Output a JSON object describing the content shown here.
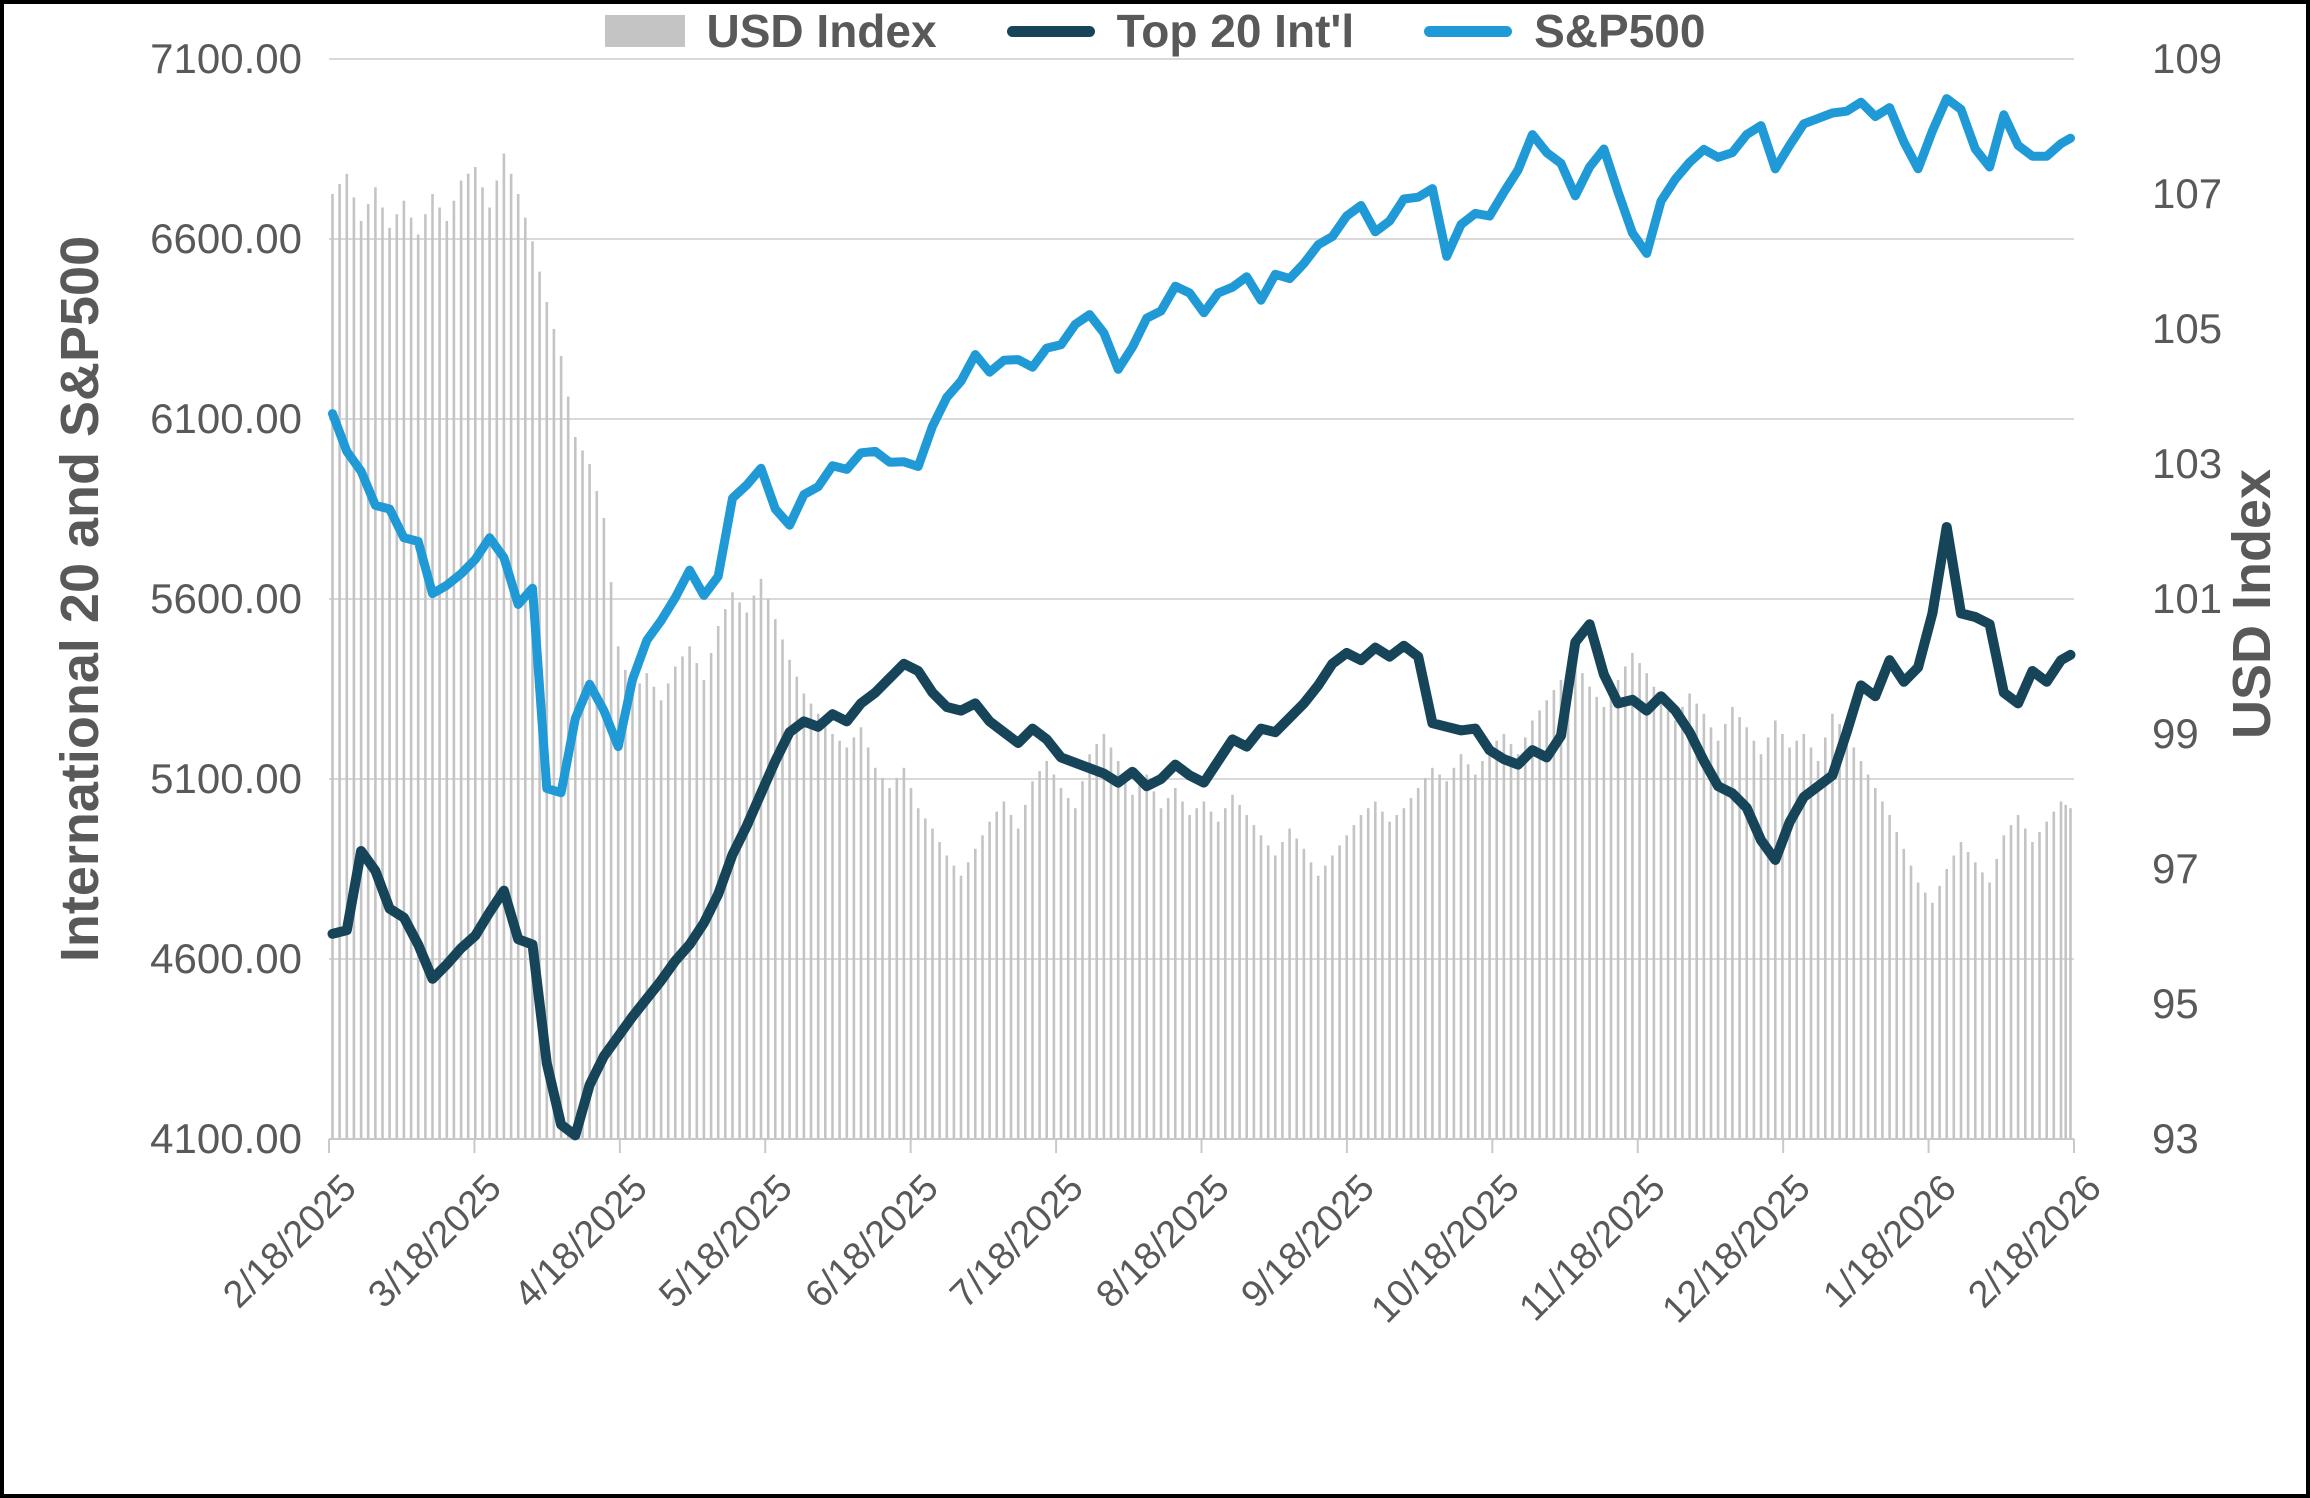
{
  "chart_data": {
    "type": "combo",
    "subtype": "bars-and-lines, dual y-axis, daily time series",
    "x_axis": {
      "tick_labels": [
        "2/18/2025",
        "3/18/2025",
        "4/18/2025",
        "5/18/2025",
        "6/18/2025",
        "7/18/2025",
        "8/18/2025",
        "9/18/2025",
        "10/18/2025",
        "11/18/2025",
        "12/18/2025",
        "1/18/2026",
        "2/18/2026"
      ],
      "start": "2/18/2025",
      "end": "2/18/2026",
      "sample_interval_days": 3,
      "span_days": 365,
      "n_points": 123
    },
    "left_axis": {
      "title": "International 20 and S&P500",
      "tick_labels": [
        "7100.00",
        "6600.00",
        "6100.00",
        "5600.00",
        "5100.00",
        "4600.00",
        "4100.00"
      ],
      "min": 4100,
      "max": 7100,
      "step": 500
    },
    "right_axis": {
      "title": "USD Index",
      "tick_labels": [
        "109",
        "107",
        "105",
        "103",
        "101",
        "99",
        "97",
        "95",
        "93"
      ],
      "min": 93,
      "max": 109,
      "step": 2
    },
    "grid": true,
    "legend_position": "bottom",
    "legend": {
      "items": [
        {
          "label": "USD Index",
          "color": "#c4c4c4",
          "swatch": "bar"
        },
        {
          "label": "Top 20 Int'l",
          "color": "#16455a",
          "swatch": "line"
        },
        {
          "label": "S&P500",
          "color": "#1f9ad6",
          "swatch": "line"
        }
      ]
    },
    "series": [
      {
        "name": "USD Index",
        "type": "bar",
        "axis": "right",
        "color": "#c4c4c4",
        "values": [
          107.0,
          107.3,
          106.6,
          107.1,
          106.5,
          106.9,
          106.4,
          107.0,
          106.6,
          107.2,
          107.4,
          106.8,
          107.6,
          107.0,
          106.3,
          105.4,
          104.6,
          103.4,
          103.0,
          102.2,
          100.3,
          99.6,
          99.9,
          99.5,
          100.0,
          100.3,
          99.8,
          100.6,
          101.1,
          100.8,
          101.3,
          100.7,
          100.1,
          99.6,
          99.3,
          99.0,
          98.8,
          99.1,
          98.5,
          98.2,
          98.5,
          97.9,
          97.6,
          97.2,
          96.9,
          97.3,
          97.7,
          98.0,
          97.6,
          98.3,
          98.6,
          98.2,
          97.9,
          98.7,
          99.0,
          98.6,
          98.1,
          98.4,
          97.9,
          98.2,
          97.8,
          98.0,
          97.7,
          98.1,
          97.8,
          97.5,
          97.2,
          97.6,
          97.3,
          96.9,
          97.2,
          97.5,
          97.8,
          98.0,
          97.7,
          97.9,
          98.2,
          98.5,
          98.3,
          98.7,
          98.4,
          98.8,
          99.0,
          98.7,
          99.2,
          99.5,
          99.8,
          100.1,
          99.7,
          99.4,
          99.8,
          100.2,
          99.9,
          99.5,
          99.2,
          99.6,
          99.3,
          98.9,
          99.4,
          99.1,
          98.7,
          99.2,
          98.8,
          99.0,
          98.6,
          99.3,
          99.0,
          98.6,
          98.2,
          97.8,
          97.3,
          96.8,
          96.5,
          97.0,
          97.4,
          97.1,
          96.8,
          97.5,
          97.8,
          97.4,
          97.7,
          98.0,
          97.9
        ]
      },
      {
        "name": "Top 20 Int'l",
        "type": "line",
        "axis": "left",
        "color": "#16455a",
        "values": [
          4670,
          4680,
          4900,
          4845,
          4740,
          4715,
          4640,
          4545,
          4585,
          4630,
          4665,
          4730,
          4790,
          4655,
          4640,
          4310,
          4140,
          4110,
          4250,
          4330,
          4385,
          4440,
          4490,
          4540,
          4595,
          4640,
          4700,
          4780,
          4890,
          4970,
          5060,
          5150,
          5230,
          5260,
          5245,
          5280,
          5260,
          5310,
          5340,
          5380,
          5420,
          5400,
          5340,
          5300,
          5290,
          5310,
          5260,
          5230,
          5200,
          5240,
          5210,
          5160,
          5145,
          5130,
          5115,
          5090,
          5120,
          5080,
          5100,
          5140,
          5110,
          5090,
          5150,
          5210,
          5190,
          5240,
          5230,
          5270,
          5310,
          5360,
          5420,
          5450,
          5430,
          5465,
          5440,
          5470,
          5440,
          5255,
          5245,
          5235,
          5240,
          5180,
          5155,
          5140,
          5180,
          5160,
          5220,
          5480,
          5530,
          5390,
          5310,
          5320,
          5290,
          5330,
          5290,
          5230,
          5150,
          5080,
          5060,
          5020,
          4930,
          4875,
          4980,
          5050,
          5080,
          5110,
          5230,
          5360,
          5330,
          5430,
          5370,
          5410,
          5560,
          5800,
          5560,
          5550,
          5530,
          5340,
          5310,
          5400,
          5370,
          5430,
          5445
        ]
      },
      {
        "name": "S&P500",
        "type": "line",
        "axis": "left",
        "color": "#1f9ad6",
        "values": [
          6115,
          6010,
          5955,
          5860,
          5850,
          5770,
          5760,
          5615,
          5638,
          5670,
          5710,
          5770,
          5715,
          5585,
          5630,
          5074,
          5062,
          5268,
          5363,
          5290,
          5190,
          5376,
          5485,
          5540,
          5604,
          5680,
          5610,
          5663,
          5880,
          5917,
          5963,
          5850,
          5805,
          5890,
          5912,
          5970,
          5960,
          6006,
          6010,
          5980,
          5981,
          5968,
          6080,
          6160,
          6205,
          6279,
          6230,
          6263,
          6265,
          6244,
          6297,
          6306,
          6363,
          6390,
          6339,
          6238,
          6300,
          6380,
          6400,
          6469,
          6450,
          6395,
          6450,
          6466,
          6495,
          6430,
          6502,
          6490,
          6532,
          6584,
          6607,
          6664,
          6693,
          6620,
          6650,
          6711,
          6716,
          6740,
          6552,
          6640,
          6671,
          6664,
          6730,
          6792,
          6890,
          6840,
          6810,
          6720,
          6800,
          6850,
          6730,
          6617,
          6560,
          6705,
          6766,
          6813,
          6849,
          6827,
          6840,
          6890,
          6915,
          6795,
          6860,
          6920,
          6935,
          6950,
          6955,
          6980,
          6940,
          6965,
          6870,
          6795,
          6900,
          6990,
          6960,
          6850,
          6800,
          6945,
          6860,
          6830,
          6830,
          6865,
          6880
        ]
      }
    ]
  },
  "colors": {
    "background": "#ffffff",
    "border": "#000000",
    "gridline": "#d9d9d9",
    "axis_line": "#c9c9c9",
    "tick_text": "#595959",
    "bar": "#c4c4c4",
    "top20_line": "#16455a",
    "sp500_line": "#1f9ad6"
  }
}
